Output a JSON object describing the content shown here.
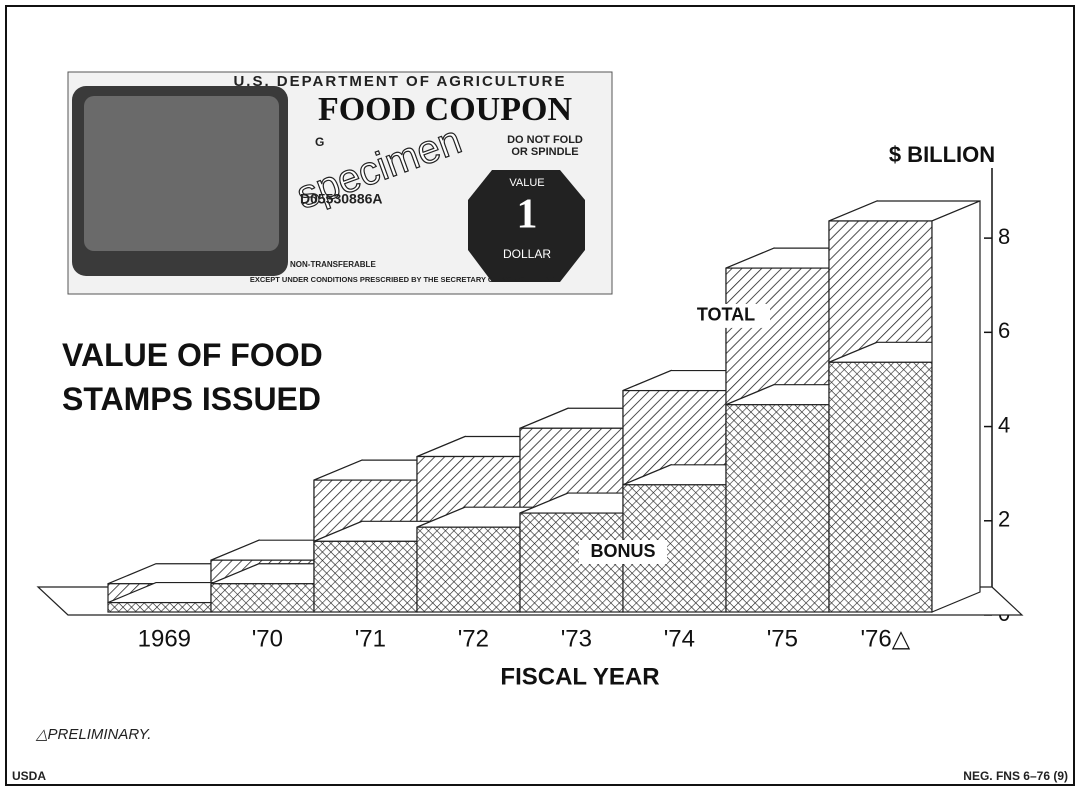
{
  "chart_data": {
    "type": "step-area-3d",
    "title": "VALUE OF FOOD STAMPS ISSUED",
    "y_label": "$ BILLION",
    "x_label": "FISCAL YEAR",
    "categories": [
      "1969",
      "'70",
      "'71",
      "'72",
      "'73",
      "'74",
      "'75",
      "'76△"
    ],
    "series": [
      {
        "name": "TOTAL",
        "color": "#222222",
        "values": [
          0.6,
          1.1,
          2.8,
          3.3,
          3.9,
          4.7,
          7.3,
          8.3
        ]
      },
      {
        "name": "BONUS",
        "color": "#222222",
        "values": [
          0.2,
          0.6,
          1.5,
          1.8,
          2.1,
          2.7,
          4.4,
          5.3
        ]
      }
    ],
    "ylim": [
      0,
      9
    ],
    "yticks": [
      0,
      2,
      4,
      6,
      8
    ],
    "note": "△PRELIMINARY."
  },
  "coupon": {
    "agency": "U.S. DEPARTMENT OF AGRICULTURE",
    "title": "FOOD COUPON",
    "letter": "G",
    "warning": [
      "DO NOT FOLD",
      "OR SPINDLE"
    ],
    "stamp": "specimen",
    "serial": "D05530886A",
    "value_top": "VALUE",
    "value": "1",
    "value_bottom": "DOLLAR",
    "footer": [
      "NON-TRANSFERABLE",
      "EXCEPT UNDER CONDITIONS PRESCRIBED BY THE SECRETARY OF AGRICULTURE"
    ]
  },
  "footer": {
    "left": "USDA",
    "right": "NEG. FNS 6–76 (9)"
  }
}
